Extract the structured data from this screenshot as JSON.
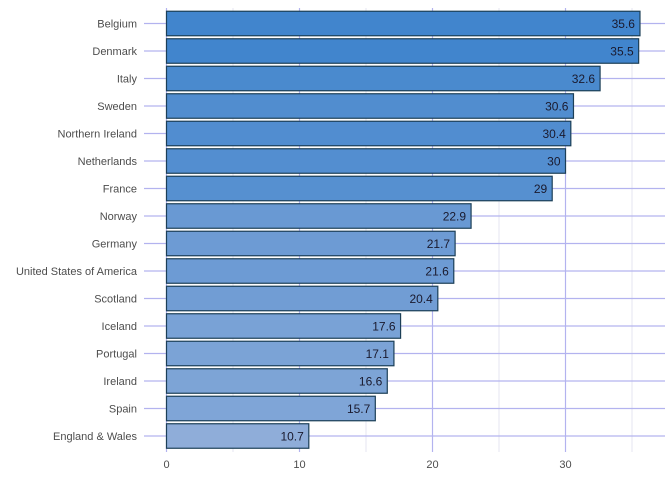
{
  "chart_data": {
    "type": "bar",
    "orientation": "horizontal",
    "categories": [
      "Belgium",
      "Denmark",
      "Italy",
      "Sweden",
      "Northern Ireland",
      "Netherlands",
      "France",
      "Norway",
      "Germany",
      "United States of America",
      "Scotland",
      "Iceland",
      "Portugal",
      "Ireland",
      "Spain",
      "England & Wales"
    ],
    "values": [
      35.6,
      35.5,
      32.6,
      30.6,
      30.4,
      30,
      29,
      22.9,
      21.7,
      21.6,
      20.4,
      17.6,
      17.1,
      16.6,
      15.7,
      10.7
    ],
    "value_labels": [
      "35.6",
      "35.5",
      "32.6",
      "30.6",
      "30.4",
      "30",
      "29",
      "22.9",
      "21.7",
      "21.6",
      "20.4",
      "17.6",
      "17.1",
      "16.6",
      "15.7",
      "10.7"
    ],
    "x_ticks": [
      0,
      10,
      20,
      30
    ],
    "x_tick_labels": [
      "0",
      "10",
      "20",
      "30"
    ],
    "xlim": [
      0,
      37.4
    ],
    "title": "",
    "xlabel": "",
    "ylabel": "",
    "grid": true,
    "legend": "none",
    "colors": {
      "bar_high": "#4185cd",
      "bar_low": "#8fadd9",
      "bar_stroke": "#1c3f57",
      "grid": "#b3b3ef",
      "grid_minor": "#e6e6f2"
    }
  }
}
